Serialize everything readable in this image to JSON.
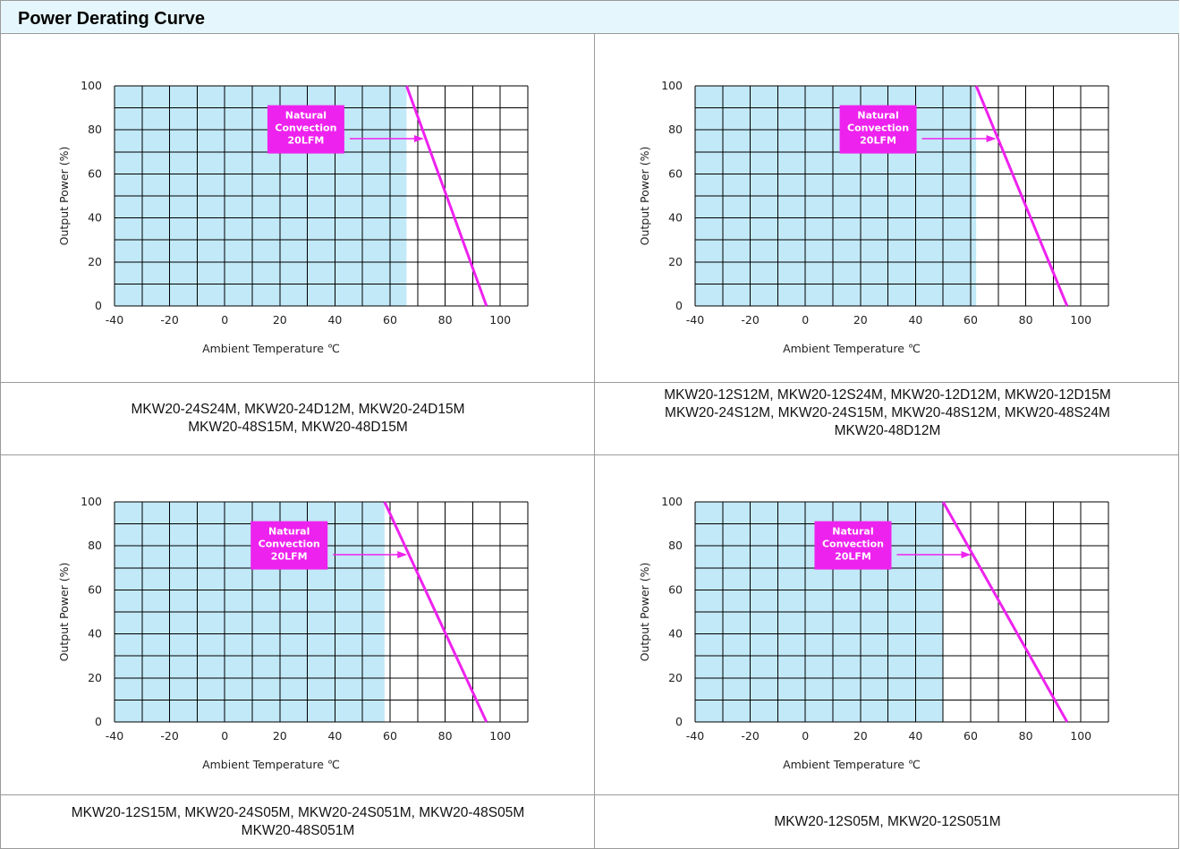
{
  "page_title": "Power Derating Curve",
  "colors": {
    "area_fill": "#c2e9f7",
    "curve": "#ee22ee",
    "grid": "#000000",
    "label_box": "#ee22ee",
    "label_text": "#ffffff",
    "border": "#9a9a9a",
    "title_bg": "#e5f7fc"
  },
  "chart_data": [
    {
      "type": "line",
      "xlabel": "Ambient Temperature ℃",
      "ylabel": "Output Power (%)",
      "xlim": [
        -40,
        110
      ],
      "ylim": [
        0,
        100
      ],
      "x_ticks": [
        "-40",
        "-20",
        "0",
        "20",
        "40",
        "60",
        "80",
        "100"
      ],
      "y_ticks": [
        "0",
        "20",
        "40",
        "60",
        "80",
        "100"
      ],
      "grid": true,
      "full_power_limit": 66,
      "series": [
        {
          "x": [
            -40,
            66,
            95
          ],
          "y": [
            100,
            100,
            0
          ]
        }
      ],
      "annotation": {
        "lines": [
          "Natural",
          "Convection",
          "20LFM"
        ]
      },
      "models": [
        "MKW20-24S24M, MKW20-24D12M, MKW20-24D15M",
        "MKW20-48S15M, MKW20-48D15M"
      ]
    },
    {
      "type": "line",
      "xlabel": "Ambient Temperature ℃",
      "ylabel": "Output Power (%)",
      "xlim": [
        -40,
        110
      ],
      "ylim": [
        0,
        100
      ],
      "x_ticks": [
        "-40",
        "-20",
        "0",
        "20",
        "40",
        "60",
        "80",
        "100"
      ],
      "y_ticks": [
        "0",
        "20",
        "40",
        "60",
        "80",
        "100"
      ],
      "grid": true,
      "full_power_limit": 62,
      "series": [
        {
          "x": [
            -40,
            62,
            95
          ],
          "y": [
            100,
            100,
            0
          ]
        }
      ],
      "annotation": {
        "lines": [
          "Natural",
          "Convection",
          "20LFM"
        ]
      },
      "models": [
        "MKW20-12S12M, MKW20-12S24M, MKW20-12D12M, MKW20-12D15M",
        "MKW20-24S12M, MKW20-24S15M, MKW20-48S12M, MKW20-48S24M",
        "MKW20-48D12M"
      ]
    },
    {
      "type": "line",
      "xlabel": "Ambient Temperature ℃",
      "ylabel": "Output Power (%)",
      "xlim": [
        -40,
        110
      ],
      "ylim": [
        0,
        100
      ],
      "x_ticks": [
        "-40",
        "-20",
        "0",
        "20",
        "40",
        "60",
        "80",
        "100"
      ],
      "y_ticks": [
        "0",
        "20",
        "40",
        "60",
        "80",
        "100"
      ],
      "grid": true,
      "full_power_limit": 58,
      "series": [
        {
          "x": [
            -40,
            58,
            95
          ],
          "y": [
            100,
            100,
            0
          ]
        }
      ],
      "annotation": {
        "lines": [
          "Natural",
          "Convection",
          "20LFM"
        ]
      },
      "models": [
        "MKW20-12S15M, MKW20-24S05M, MKW20-24S051M, MKW20-48S05M",
        "MKW20-48S051M"
      ]
    },
    {
      "type": "line",
      "xlabel": "Ambient Temperature ℃",
      "ylabel": "Output Power (%)",
      "xlim": [
        -40,
        110
      ],
      "ylim": [
        0,
        100
      ],
      "x_ticks": [
        "-40",
        "-20",
        "0",
        "20",
        "40",
        "60",
        "80",
        "100"
      ],
      "y_ticks": [
        "0",
        "20",
        "40",
        "60",
        "80",
        "100"
      ],
      "grid": true,
      "full_power_limit": 50,
      "series": [
        {
          "x": [
            -40,
            50,
            95
          ],
          "y": [
            100,
            100,
            0
          ]
        }
      ],
      "annotation": {
        "lines": [
          "Natural",
          "Convection",
          "20LFM"
        ]
      },
      "models": [
        "MKW20-12S05M, MKW20-12S051M"
      ]
    }
  ]
}
